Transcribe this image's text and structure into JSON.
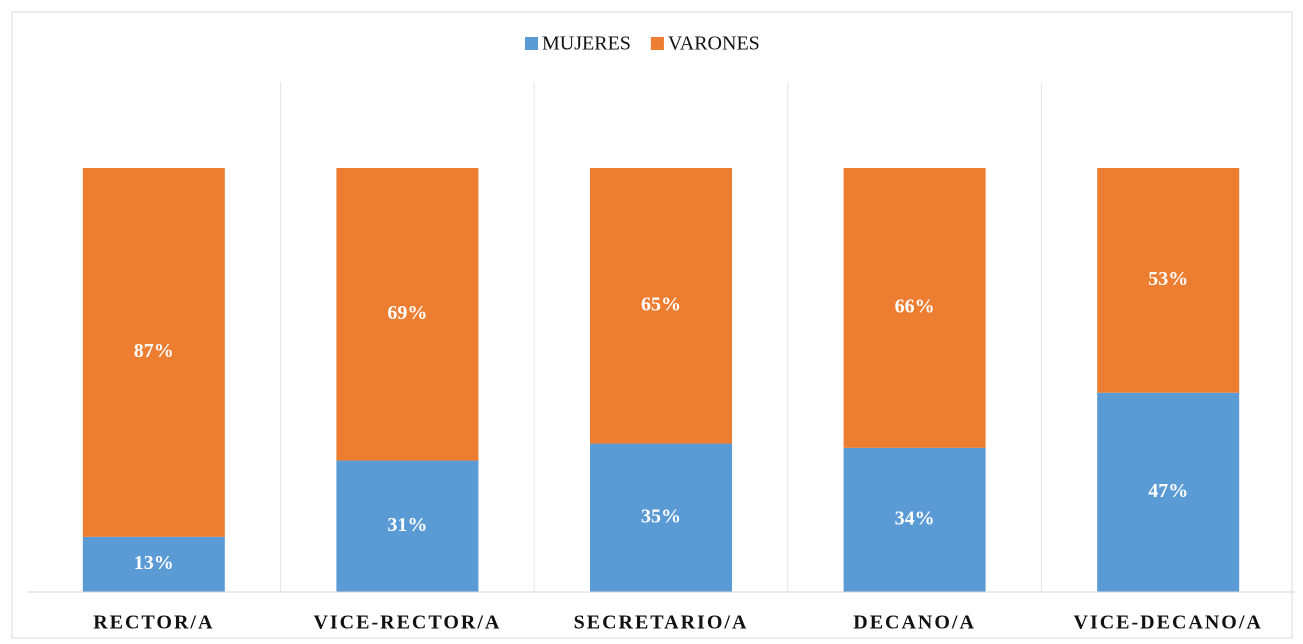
{
  "chart_data": {
    "type": "stacked_bar",
    "categories": [
      "RECTOR/A",
      "VICE-RECTOR/A",
      "SECRETARIO/A",
      "DECANO/A",
      "VICE-DECANO/A"
    ],
    "series": [
      {
        "name": "MUJERES",
        "color": "#5b9bd5",
        "values": [
          13,
          31,
          35,
          34,
          47
        ],
        "value_labels": [
          "13%",
          "31%",
          "35%",
          "34%",
          "47%"
        ]
      },
      {
        "name": "VARONES",
        "color": "#ed7d31",
        "values": [
          87,
          69,
          65,
          66,
          53
        ],
        "value_labels": [
          "87%",
          "69%",
          "65%",
          "66%",
          "53%"
        ]
      }
    ],
    "ylim": [
      0,
      100
    ],
    "legend": "top"
  }
}
